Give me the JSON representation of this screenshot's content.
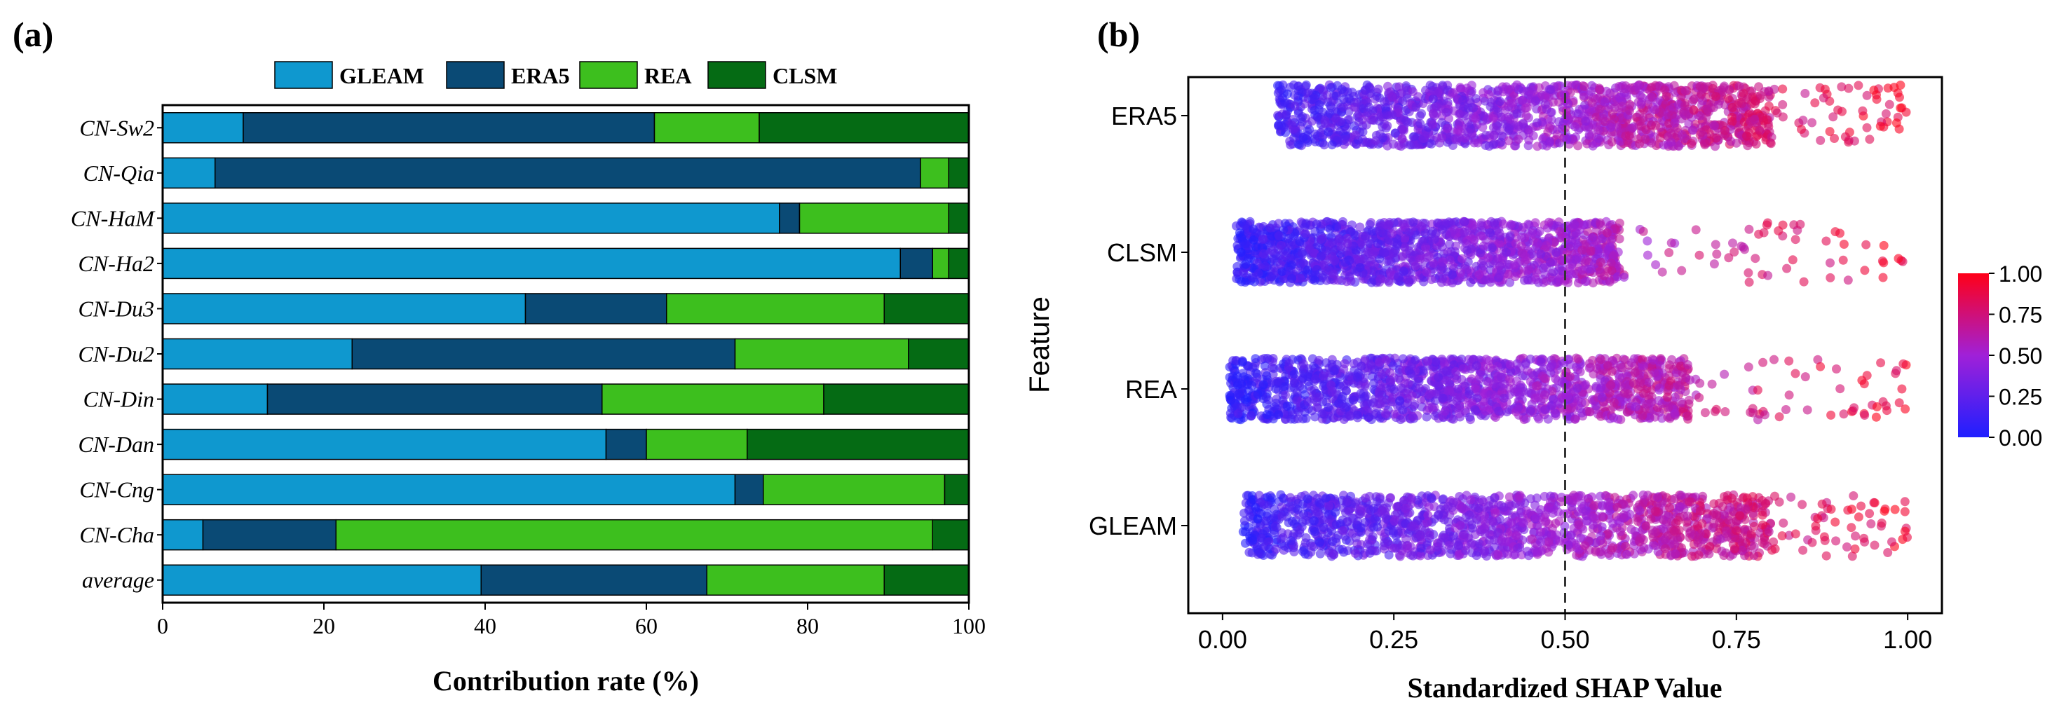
{
  "chart_data": [
    {
      "panel_label": "(a)",
      "type": "bar",
      "orientation": "horizontal",
      "stacked": true,
      "xlabel": "Contribution rate (%)",
      "ylabel": "",
      "xlim": [
        0,
        100
      ],
      "xticks": [
        "0",
        "20",
        "40",
        "60",
        "80",
        "100"
      ],
      "legend_position": "top",
      "categories": [
        "CN-Sw2",
        "CN-Qia",
        "CN-HaM",
        "CN-Ha2",
        "CN-Du3",
        "CN-Du2",
        "CN-Din",
        "CN-Dan",
        "CN-Cng",
        "CN-Cha",
        "average"
      ],
      "series": [
        {
          "name": "GLEAM",
          "color": "#0f98cf",
          "values": [
            10,
            6.5,
            76.5,
            91.5,
            45,
            23.5,
            13,
            55,
            71,
            5,
            39.5
          ]
        },
        {
          "name": "ERA5",
          "color": "#0a4a75",
          "values": [
            51,
            87.5,
            2.5,
            4,
            17.5,
            47.5,
            41.5,
            5,
            3.5,
            16.5,
            28
          ]
        },
        {
          "name": "REA",
          "color": "#3dbf1e",
          "values": [
            13,
            3.5,
            18.5,
            2,
            27,
            21.5,
            27.5,
            12.5,
            22.5,
            74,
            22
          ]
        },
        {
          "name": "CLSM",
          "color": "#056b14",
          "values": [
            26,
            2.5,
            2.5,
            2.5,
            10.5,
            7.5,
            18,
            27.5,
            3,
            4.5,
            10.5
          ]
        }
      ]
    },
    {
      "panel_label": "(b)",
      "type": "scatter",
      "xlabel": "Standardized SHAP Value",
      "ylabel": "Feature",
      "xlim": [
        -0.05,
        1.05
      ],
      "xticks": [
        "0.00",
        "0.25",
        "0.50",
        "0.75",
        "1.00"
      ],
      "categories": [
        "ERA5",
        "CLSM",
        "REA",
        "GLEAM"
      ],
      "reference_line_x": 0.5,
      "colorbar": {
        "range": [
          0,
          1
        ],
        "ticks": [
          "0.00",
          "0.25",
          "0.50",
          "0.75",
          "1.00"
        ],
        "low_color": "#1f1fff",
        "high_color": "#ff0018"
      },
      "distribution": [
        {
          "feature": "ERA5",
          "dense_from": 0.08,
          "dense_to": 0.8,
          "tail_to": 1.0
        },
        {
          "feature": "CLSM",
          "dense_from": 0.02,
          "dense_to": 0.58,
          "tail_to": 1.0
        },
        {
          "feature": "REA",
          "dense_from": 0.01,
          "dense_to": 0.68,
          "tail_to": 1.0
        },
        {
          "feature": "GLEAM",
          "dense_from": 0.03,
          "dense_to": 0.8,
          "tail_to": 1.0
        }
      ]
    }
  ]
}
